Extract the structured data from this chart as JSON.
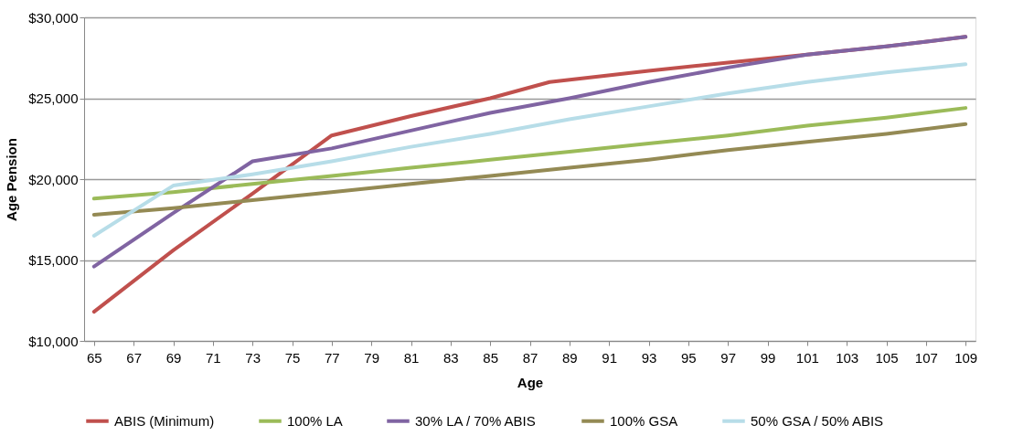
{
  "chart_data": {
    "type": "line",
    "xlabel": "Age",
    "ylabel": "Age Pension",
    "x": [
      65,
      69,
      73,
      77,
      81,
      85,
      89,
      93,
      97,
      101,
      105,
      109
    ],
    "series": [
      {
        "name": "ABIS (Minimum)",
        "color": "#c0504d",
        "x": [
          65,
          69,
          73,
          77,
          81,
          85,
          88,
          93,
          97,
          101,
          105,
          109
        ],
        "values": [
          11800,
          15600,
          19100,
          22700,
          23900,
          25000,
          26000,
          26700,
          27200,
          27700,
          28200,
          28800
        ]
      },
      {
        "name": "100% LA",
        "color": "#9bbb59",
        "values": [
          18800,
          19200,
          19700,
          20200,
          20700,
          21200,
          21700,
          22200,
          22700,
          23300,
          23800,
          24400
        ]
      },
      {
        "name": "30% LA / 70% ABIS",
        "color": "#8064a2",
        "values": [
          14600,
          17900,
          21100,
          21900,
          23000,
          24100,
          25000,
          26000,
          26900,
          27700,
          28200,
          28800
        ]
      },
      {
        "name": "100% GSA",
        "color": "#948a54",
        "values": [
          17800,
          18200,
          18700,
          19200,
          19700,
          20200,
          20700,
          21200,
          21800,
          22300,
          22800,
          23400
        ]
      },
      {
        "name": "50% GSA / 50% ABIS",
        "color": "#b7dde8",
        "values": [
          16500,
          19600,
          20300,
          21100,
          22000,
          22800,
          23700,
          24500,
          25300,
          26000,
          26600,
          27100
        ]
      }
    ],
    "xlim": [
      64.5,
      109.5
    ],
    "xticks": [
      65,
      67,
      69,
      71,
      73,
      75,
      77,
      79,
      81,
      83,
      85,
      87,
      89,
      91,
      93,
      95,
      97,
      99,
      101,
      103,
      105,
      107,
      109
    ],
    "ylim": [
      10000,
      30000
    ],
    "yticks": [
      {
        "value": 10000,
        "label": "$10,000"
      },
      {
        "value": 15000,
        "label": "$15,000"
      },
      {
        "value": 20000,
        "label": "$20,000"
      },
      {
        "value": 25000,
        "label": "$25,000"
      },
      {
        "value": 30000,
        "label": "$30,000"
      }
    ],
    "grid": "y",
    "legend": "bottom",
    "marker": "none",
    "line_style": "solid"
  }
}
